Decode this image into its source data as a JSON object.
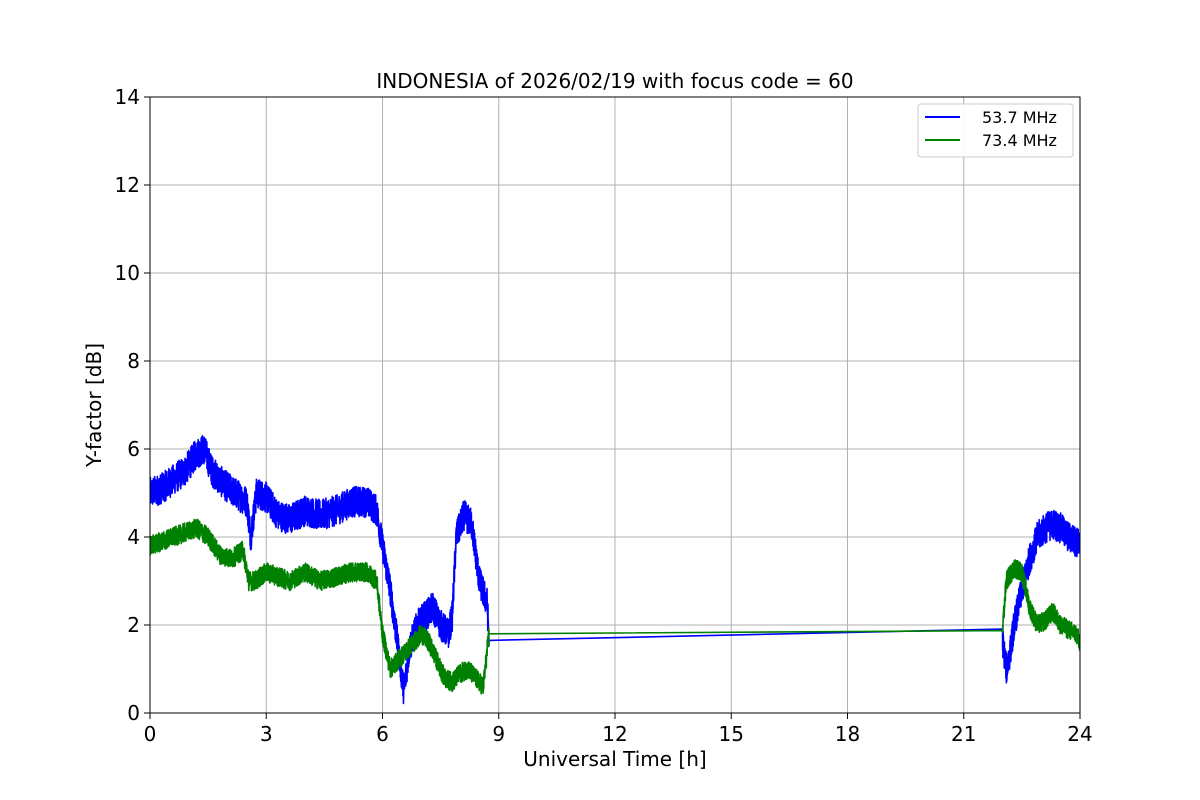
{
  "chart_data": {
    "type": "line",
    "title": "INDONESIA of 2026/02/19 with focus code = 60",
    "xlabel": "Universal Time [h]",
    "ylabel": "Y-factor [dB]",
    "xlim": [
      0,
      24
    ],
    "ylim": [
      0,
      14
    ],
    "xticks": [
      0,
      3,
      6,
      9,
      12,
      15,
      18,
      21,
      24
    ],
    "yticks": [
      0,
      2,
      4,
      6,
      8,
      10,
      12,
      14
    ],
    "grid": true,
    "legend_position": "top-right",
    "series": [
      {
        "name": "53.7 MHz",
        "color": "#0000ff",
        "noise": 0.35,
        "x": [
          0,
          0.3,
          0.6,
          0.9,
          1.2,
          1.4,
          1.6,
          1.9,
          2.2,
          2.5,
          2.6,
          2.75,
          3.0,
          3.3,
          3.6,
          4.0,
          4.4,
          4.8,
          5.2,
          5.6,
          5.85,
          6.0,
          6.2,
          6.4,
          6.55,
          6.7,
          6.9,
          7.1,
          7.3,
          7.5,
          7.7,
          7.8,
          7.9,
          8.1,
          8.3,
          8.5,
          8.7,
          8.75,
          22.0,
          22.1,
          22.2,
          22.3,
          22.5,
          22.7,
          22.9,
          23.1,
          23.3,
          23.5,
          23.7,
          23.9,
          24.0
        ],
        "y": [
          5.0,
          5.1,
          5.3,
          5.5,
          5.9,
          6.0,
          5.5,
          5.2,
          5.0,
          4.8,
          4.0,
          5.0,
          4.9,
          4.5,
          4.4,
          4.6,
          4.5,
          4.6,
          4.8,
          4.8,
          4.6,
          3.8,
          2.8,
          1.5,
          0.5,
          1.5,
          2.0,
          2.2,
          2.4,
          2.0,
          1.8,
          2.2,
          4.0,
          4.5,
          4.3,
          3.0,
          2.5,
          1.65,
          1.65,
          1.0,
          1.4,
          2.0,
          2.8,
          3.5,
          4.0,
          4.2,
          4.3,
          4.2,
          4.0,
          3.9,
          3.8
        ]
      },
      {
        "name": "73.4 MHz",
        "color": "#008000",
        "noise": 0.22,
        "x": [
          0,
          0.3,
          0.6,
          0.9,
          1.2,
          1.5,
          1.8,
          2.1,
          2.4,
          2.55,
          2.7,
          3.0,
          3.3,
          3.6,
          4.0,
          4.4,
          4.8,
          5.2,
          5.6,
          5.85,
          6.0,
          6.2,
          6.4,
          6.6,
          6.8,
          7.0,
          7.2,
          7.4,
          7.6,
          7.8,
          8.0,
          8.2,
          8.4,
          8.6,
          8.75,
          22.0,
          22.1,
          22.3,
          22.5,
          22.7,
          22.9,
          23.1,
          23.3,
          23.5,
          23.7,
          23.9,
          24.0
        ],
        "y": [
          3.8,
          3.9,
          4.0,
          4.1,
          4.2,
          4.0,
          3.6,
          3.5,
          3.7,
          3.0,
          3.0,
          3.2,
          3.1,
          3.0,
          3.2,
          3.0,
          3.1,
          3.2,
          3.2,
          3.0,
          1.8,
          1.0,
          1.2,
          1.4,
          1.6,
          1.8,
          1.6,
          1.2,
          0.8,
          0.7,
          0.9,
          1.0,
          0.8,
          0.6,
          1.8,
          1.92,
          3.0,
          3.3,
          3.2,
          2.4,
          2.0,
          2.1,
          2.3,
          2.0,
          1.9,
          1.8,
          1.6
        ]
      }
    ]
  }
}
